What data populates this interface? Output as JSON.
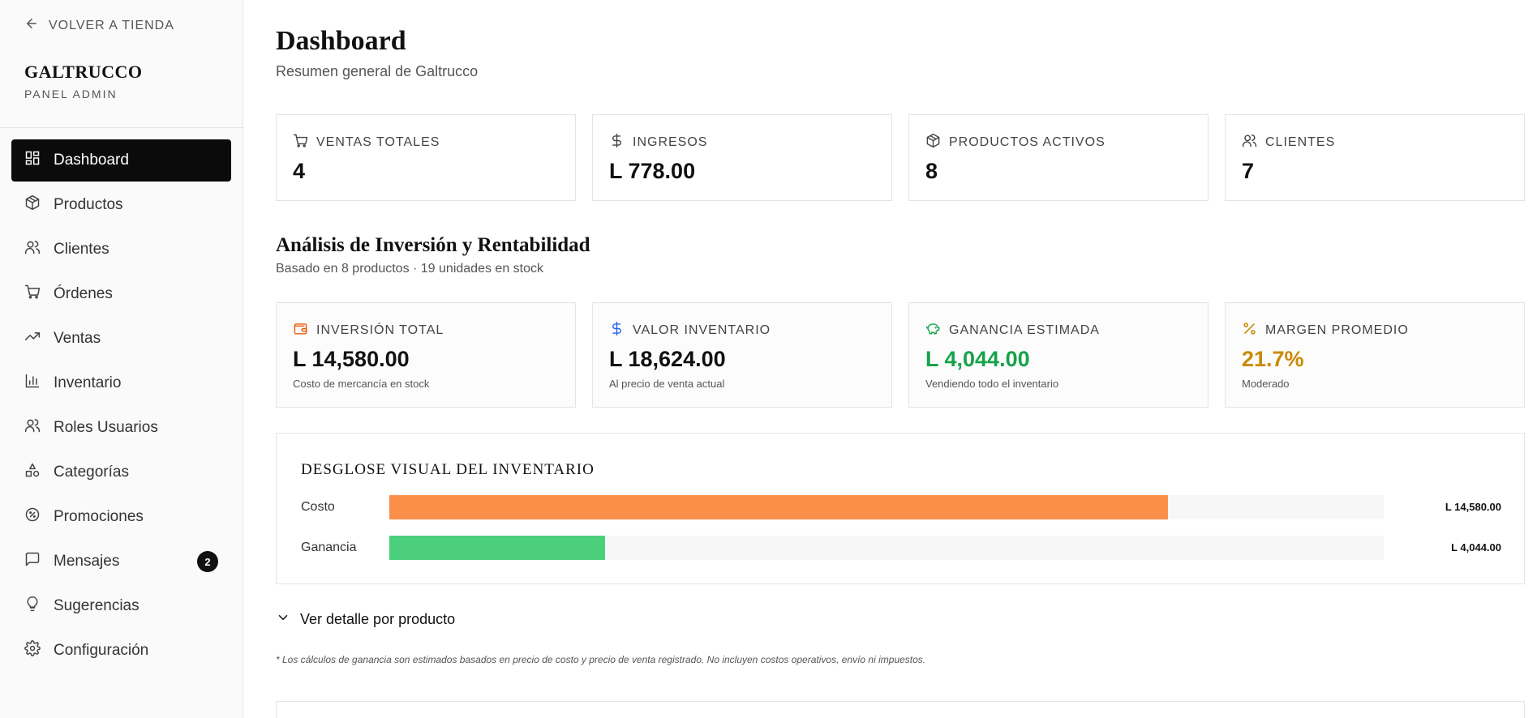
{
  "sidebar": {
    "back_label": "VOLVER A TIENDA",
    "brand": "GALTRUCCO",
    "brand_sub": "PANEL ADMIN",
    "items": [
      {
        "label": "Dashboard",
        "icon": "grid-icon"
      },
      {
        "label": "Productos",
        "icon": "box-icon"
      },
      {
        "label": "Clientes",
        "icon": "users-icon"
      },
      {
        "label": "Órdenes",
        "icon": "cart-icon"
      },
      {
        "label": "Ventas",
        "icon": "trend-icon"
      },
      {
        "label": "Inventario",
        "icon": "bar-chart-icon"
      },
      {
        "label": "Roles Usuarios",
        "icon": "users-icon"
      },
      {
        "label": "Categorías",
        "icon": "shapes-icon"
      },
      {
        "label": "Promociones",
        "icon": "percent-badge-icon"
      },
      {
        "label": "Mensajes",
        "icon": "message-icon",
        "badge": "2"
      },
      {
        "label": "Sugerencias",
        "icon": "lightbulb-icon"
      },
      {
        "label": "Configuración",
        "icon": "gear-icon"
      }
    ]
  },
  "header": {
    "title": "Dashboard",
    "subtitle": "Resumen general de Galtrucco"
  },
  "stats": [
    {
      "label": "VENTAS TOTALES",
      "value": "4",
      "icon": "cart-icon"
    },
    {
      "label": "INGRESOS",
      "value": "L 778.00",
      "icon": "dollar-icon"
    },
    {
      "label": "PRODUCTOS ACTIVOS",
      "value": "8",
      "icon": "box-icon"
    },
    {
      "label": "CLIENTES",
      "value": "7",
      "icon": "users-icon"
    }
  ],
  "analysis": {
    "title": "Análisis de Inversión y Rentabilidad",
    "subtitle": "Basado en 8 productos · 19 unidades en stock",
    "cards": [
      {
        "label": "INVERSIÓN TOTAL",
        "value": "L 14,580.00",
        "note": "Costo de mercancía en stock",
        "icon": "wallet-icon",
        "color": "#ea580c",
        "value_color": "#111111"
      },
      {
        "label": "VALOR INVENTARIO",
        "value": "L 18,624.00",
        "note": "Al precio de venta actual",
        "icon": "dollar-icon",
        "color": "#2563eb",
        "value_color": "#111111"
      },
      {
        "label": "GANANCIA ESTIMADA",
        "value": "L 4,044.00",
        "note": "Vendiendo todo el inventario",
        "icon": "piggy-bank-icon",
        "color": "#16a34a",
        "value_color": "#16a34a"
      },
      {
        "label": "MARGEN PROMEDIO",
        "value": "21.7%",
        "note": "Moderado",
        "icon": "percent-icon",
        "color": "#ca8a04",
        "value_color": "#ca8a04"
      }
    ]
  },
  "breakdown": {
    "title": "DESGLOSE VISUAL DEL INVENTARIO",
    "bars": [
      {
        "label": "Costo",
        "value": "L 14,580.00",
        "fraction": 0.783,
        "color": "#fb8f4a"
      },
      {
        "label": "Ganancia",
        "value": "L 4,044.00",
        "fraction": 0.217,
        "color": "#4ccf7d"
      }
    ]
  },
  "detail_toggle": "Ver detalle por producto",
  "footnote": "* Los cálculos de ganancia son estimados basados en precio de costo y precio de venta registrado. No incluyen costos operativos, envío ni impuestos."
}
